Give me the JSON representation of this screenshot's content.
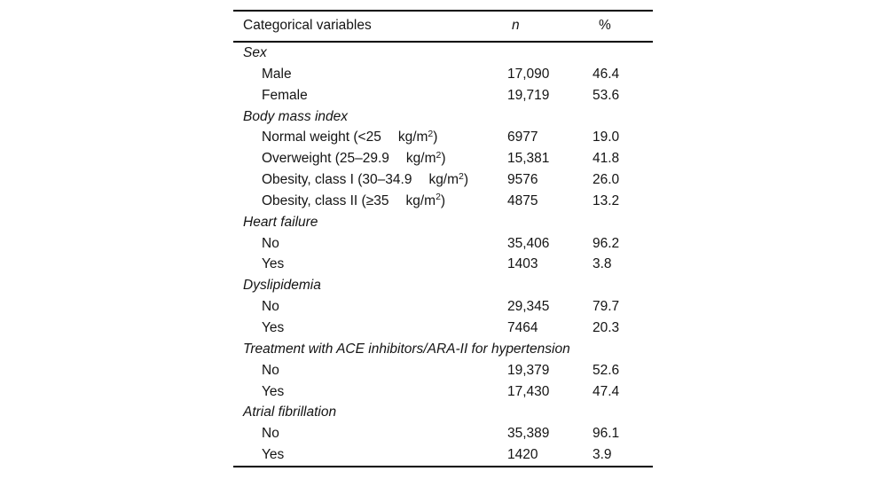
{
  "table": {
    "columns": {
      "label": "Categorical variables",
      "n": "n",
      "pct": "%"
    },
    "rows": [
      {
        "kind": "section",
        "label": "Sex"
      },
      {
        "kind": "item",
        "label": "Male",
        "n": "17,090",
        "pct": "46.4"
      },
      {
        "kind": "item",
        "label": "Female",
        "n": "19,719",
        "pct": "53.6"
      },
      {
        "kind": "section",
        "label": "Body mass index"
      },
      {
        "kind": "item",
        "label": "Normal weight (<25\tkg/m^{2})",
        "n": "6977",
        "pct": "19.0"
      },
      {
        "kind": "item",
        "label": "Overweight (25–29.9\tkg/m^{2})",
        "n": "15,381",
        "pct": "41.8"
      },
      {
        "kind": "item",
        "label": "Obesity, class I (30–34.9\tkg/m^{2})",
        "n": "9576",
        "pct": "26.0"
      },
      {
        "kind": "item",
        "label": "Obesity, class II (≥35\tkg/m^{2})",
        "n": "4875",
        "pct": "13.2"
      },
      {
        "kind": "section",
        "label": "Heart failure"
      },
      {
        "kind": "item",
        "label": "No",
        "n": "35,406",
        "pct": "96.2"
      },
      {
        "kind": "item",
        "label": "Yes",
        "n": "1403",
        "pct": "3.8"
      },
      {
        "kind": "section",
        "label": "Dyslipidemia"
      },
      {
        "kind": "item",
        "label": "No",
        "n": "29,345",
        "pct": "79.7"
      },
      {
        "kind": "item",
        "label": "Yes",
        "n": "7464",
        "pct": "20.3"
      },
      {
        "kind": "section",
        "label": "Treatment with ACE inhibitors/ARA-II for hypertension"
      },
      {
        "kind": "item",
        "label": "No",
        "n": "19,379",
        "pct": "52.6"
      },
      {
        "kind": "item",
        "label": "Yes",
        "n": "17,430",
        "pct": "47.4"
      },
      {
        "kind": "section",
        "label": "Atrial fibrillation"
      },
      {
        "kind": "item",
        "label": "No",
        "n": "35,389",
        "pct": "96.1"
      },
      {
        "kind": "item",
        "label": "Yes",
        "n": "1420",
        "pct": "3.9"
      }
    ]
  }
}
